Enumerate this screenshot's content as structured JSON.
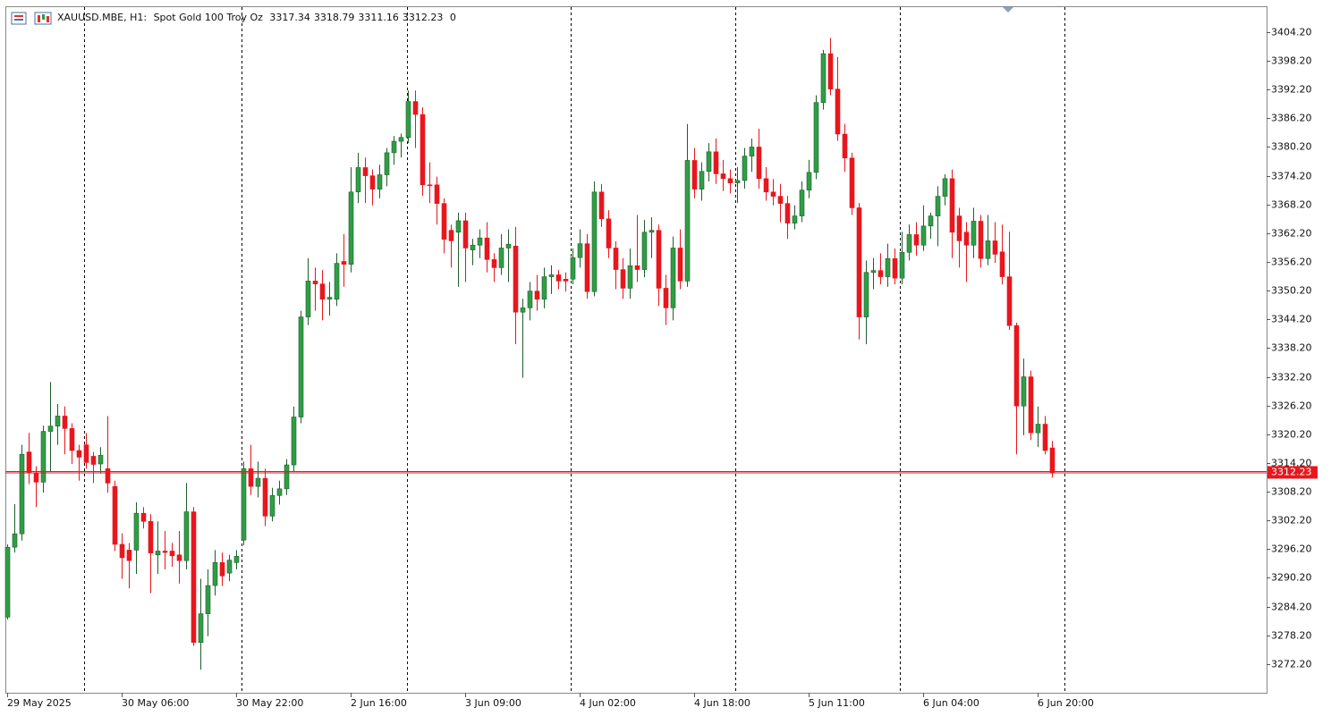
{
  "chart_data": {
    "type": "candlestick",
    "symbol": "XAUUSD.MBE, H1:",
    "description": "Spot Gold 100 Troy Oz",
    "volume": 0,
    "up_color": "#2f9e46",
    "down_color": "#e8161d",
    "categories": [
      "29 May 2025",
      null,
      null,
      null,
      null,
      null,
      null,
      null,
      null,
      null,
      null,
      null,
      null,
      null,
      null,
      null,
      "30 May 06:00",
      null,
      null,
      null,
      null,
      null,
      null,
      null,
      null,
      null,
      null,
      null,
      null,
      null,
      null,
      null,
      "30 May 22:00",
      null,
      null,
      null,
      null,
      null,
      null,
      null,
      null,
      null,
      null,
      null,
      null,
      null,
      null,
      null,
      "2 Jun 16:00",
      null,
      null,
      null,
      null,
      null,
      null,
      null,
      null,
      null,
      null,
      null,
      null,
      null,
      null,
      null,
      "3 Jun 09:00",
      null,
      null,
      null,
      null,
      null,
      null,
      null,
      null,
      null,
      null,
      null,
      null,
      null,
      null,
      null,
      "4 Jun 02:00",
      null,
      null,
      null,
      null,
      null,
      null,
      null,
      null,
      null,
      null,
      null,
      null,
      null,
      null,
      null,
      "4 Jun 18:00",
      null,
      null,
      null,
      null,
      null,
      null,
      null,
      null,
      null,
      null,
      null,
      null,
      null,
      null,
      null,
      "5 Jun 11:00",
      null,
      null,
      null,
      null,
      null,
      null,
      null,
      null,
      null,
      null,
      null,
      null,
      null,
      null,
      null,
      "6 Jun 04:00",
      null,
      null,
      null,
      null,
      null,
      null,
      null,
      null,
      null,
      null,
      null,
      null,
      null,
      null,
      null,
      "6 Jun 20:00",
      null,
      null
    ],
    "open": [
      3282.0,
      3296.6,
      3299.4,
      3316.5,
      3312.0,
      3310.2,
      3320.8,
      3321.9,
      3324.0,
      3321.4,
      3316.8,
      3318.0,
      3315.6,
      3314.0,
      3313.0,
      3309.3,
      3297.2,
      3296.0,
      3296.0,
      3303.7,
      3302.0,
      3295.0,
      3295.8,
      3295.8,
      3295.0,
      3293.8,
      3304.0,
      3276.7,
      3282.7,
      3288.6,
      3293.4,
      3291.2,
      3293.4,
      3298.1,
      3313.0,
      3309.3,
      3311.0,
      3303.1,
      3307.4,
      3308.8,
      3313.8,
      3323.8,
      3344.7,
      3352.2,
      3351.6,
      3348.4,
      3348.4,
      3356.3,
      3355.7,
      3370.8,
      3375.9,
      3374.2,
      3371.4,
      3374.4,
      3379.0,
      3381.4,
      3382.2,
      3389.7,
      3387.0,
      3372.3,
      3372.3,
      3368.4,
      3362.8,
      3362.4,
      3364.8,
      3358.7,
      3359.7,
      3361.2,
      3356.7,
      3355.0,
      3359.1,
      3359.5,
      3345.7,
      3346.6,
      3350.1,
      3348.4,
      3353.1,
      3353.5,
      3352.6,
      3352.6,
      3357.1,
      3360.0,
      3350.0,
      3370.8,
      3365.2,
      3359.1,
      3354.6,
      3350.7,
      3355.4,
      3354.6,
      3362.4,
      3362.8,
      3350.7,
      3346.6,
      3359.1,
      3352.2,
      3377.4,
      3371.4,
      3375.1,
      3379.2,
      3374.6,
      3373.6,
      3372.7,
      3373.2,
      3378.3,
      3380.2,
      3373.6,
      3370.8,
      3369.9,
      3368.4,
      3364.3,
      3365.8,
      3371.2,
      3374.9,
      3389.5,
      3399.7,
      3392.3,
      3382.9,
      3377.9,
      3367.5,
      3344.7,
      3354.0,
      3354.4,
      3353.1,
      3356.9,
      3352.8,
      3358.2,
      3361.9,
      3359.7,
      3363.7,
      3365.8,
      3369.9,
      3373.6,
      3365.8,
      3362.4,
      3359.7,
      3364.7,
      3356.9,
      3360.6,
      3358.3,
      3353.1,
      3342.9,
      3326.1,
      3332.2,
      3320.5,
      3322.3,
      3317.34
    ],
    "high": [
      3297.2,
      3305.6,
      3318.0,
      3320.5,
      3313.5,
      3322.0,
      3331.1,
      3326.5,
      3326.0,
      3322.5,
      3318.0,
      3320.5,
      3316.5,
      3317.5,
      3324.0,
      3310.5,
      3299.5,
      3297.5,
      3306.0,
      3305.0,
      3303.5,
      3302.0,
      3300.0,
      3297.5,
      3300.0,
      3310.0,
      3305.0,
      3290.0,
      3292.0,
      3296.0,
      3295.5,
      3295.0,
      3296.0,
      3314.5,
      3318.0,
      3314.5,
      3313.0,
      3309.0,
      3310.5,
      3315.0,
      3326.0,
      3346.0,
      3357.0,
      3355.0,
      3354.5,
      3352.0,
      3358.0,
      3362.0,
      3376.0,
      3379.0,
      3378.0,
      3375.5,
      3376.5,
      3380.0,
      3382.5,
      3383.0,
      3392.0,
      3392.0,
      3388.5,
      3377.0,
      3374.0,
      3369.5,
      3364.0,
      3366.5,
      3366.5,
      3361.0,
      3363.0,
      3364.5,
      3358.0,
      3362.0,
      3363.0,
      3363.5,
      3348.5,
      3352.0,
      3353.5,
      3355.0,
      3355.5,
      3354.5,
      3354.0,
      3359.0,
      3363.0,
      3362.0,
      3373.0,
      3372.5,
      3367.0,
      3360.5,
      3357.0,
      3359.0,
      3366.0,
      3365.0,
      3365.5,
      3364.0,
      3353.5,
      3361.5,
      3363.0,
      3385.0,
      3380.0,
      3377.0,
      3381.0,
      3382.0,
      3377.5,
      3375.5,
      3376.0,
      3380.0,
      3382.0,
      3384.0,
      3376.0,
      3373.5,
      3372.5,
      3370.0,
      3368.0,
      3373.0,
      3377.5,
      3391.0,
      3400.5,
      3403.0,
      3399.0,
      3385.0,
      3379.0,
      3368.5,
      3356.5,
      3357.0,
      3358.0,
      3360.0,
      3359.0,
      3362.5,
      3364.0,
      3364.5,
      3368.0,
      3366.5,
      3372.0,
      3374.5,
      3375.5,
      3367.5,
      3364.5,
      3367.5,
      3366.0,
      3366.0,
      3364.5,
      3364.0,
      3362.5,
      3343.5,
      3336.0,
      3333.5,
      3326.0,
      3324.0,
      3318.79
    ],
    "low": [
      3281.5,
      3295.5,
      3298.0,
      3309.8,
      3305.0,
      3308.0,
      3312.5,
      3318.0,
      3316.0,
      3314.0,
      3310.5,
      3313.0,
      3310.0,
      3312.0,
      3308.0,
      3295.8,
      3290.0,
      3288.0,
      3291.0,
      3300.5,
      3287.0,
      3291.0,
      3292.0,
      3292.5,
      3289.0,
      3292.0,
      3276.0,
      3271.0,
      3278.0,
      3286.5,
      3288.5,
      3289.5,
      3292.0,
      3297.0,
      3307.5,
      3307.0,
      3301.0,
      3302.0,
      3305.5,
      3307.5,
      3312.5,
      3322.5,
      3343.0,
      3346.0,
      3344.0,
      3345.0,
      3347.0,
      3351.0,
      3354.0,
      3368.5,
      3368.5,
      3368.0,
      3369.5,
      3372.0,
      3376.5,
      3378.0,
      3381.0,
      3380.0,
      3370.0,
      3368.5,
      3364.0,
      3358.0,
      3355.0,
      3351.0,
      3352.0,
      3355.5,
      3357.0,
      3354.0,
      3352.0,
      3353.5,
      3352.0,
      3339.0,
      3332.0,
      3344.0,
      3346.0,
      3346.5,
      3349.5,
      3350.5,
      3350.0,
      3351.5,
      3355.0,
      3348.5,
      3349.0,
      3363.5,
      3357.0,
      3350.5,
      3348.5,
      3348.5,
      3352.0,
      3353.0,
      3357.0,
      3347.0,
      3343.0,
      3344.0,
      3350.5,
      3351.0,
      3369.5,
      3369.0,
      3373.0,
      3372.5,
      3371.0,
      3370.5,
      3368.5,
      3371.5,
      3375.0,
      3371.5,
      3369.0,
      3368.0,
      3364.5,
      3361.0,
      3363.0,
      3364.5,
      3369.5,
      3373.5,
      3388.0,
      3391.0,
      3381.5,
      3375.0,
      3366.0,
      3340.0,
      3339.0,
      3350.5,
      3351.5,
      3351.0,
      3351.5,
      3351.5,
      3356.5,
      3357.5,
      3358.5,
      3361.0,
      3359.5,
      3368.0,
      3357.0,
      3355.0,
      3352.0,
      3357.0,
      3355.0,
      3355.5,
      3356.0,
      3351.5,
      3342.0,
      3316.0,
      3320.0,
      3319.0,
      3317.5,
      3316.0,
      3311.16
    ],
    "close": [
      3296.6,
      3299.4,
      3316.0,
      3312.1,
      3310.2,
      3320.8,
      3321.9,
      3324.0,
      3321.4,
      3316.8,
      3315.4,
      3314.3,
      3313.9,
      3315.8,
      3310.0,
      3297.2,
      3294.4,
      3293.8,
      3303.7,
      3302.0,
      3295.4,
      3295.8,
      3295.5,
      3294.8,
      3293.8,
      3304.0,
      3276.7,
      3282.7,
      3288.6,
      3293.4,
      3290.6,
      3293.9,
      3294.7,
      3313.0,
      3309.3,
      3311.0,
      3303.1,
      3307.4,
      3308.8,
      3313.8,
      3323.8,
      3344.7,
      3352.2,
      3351.6,
      3348.4,
      3348.8,
      3355.9,
      3355.7,
      3370.8,
      3375.9,
      3374.2,
      3371.4,
      3374.4,
      3379.0,
      3381.4,
      3382.2,
      3389.7,
      3387.0,
      3372.3,
      3372.1,
      3368.4,
      3360.9,
      3360.6,
      3364.8,
      3359.1,
      3359.7,
      3361.2,
      3356.7,
      3355.0,
      3359.1,
      3359.9,
      3345.7,
      3346.6,
      3350.1,
      3348.4,
      3353.1,
      3353.5,
      3352.2,
      3352.2,
      3357.1,
      3360.0,
      3350.0,
      3370.8,
      3365.2,
      3359.1,
      3354.6,
      3350.7,
      3355.4,
      3354.6,
      3362.4,
      3362.8,
      3350.7,
      3346.6,
      3359.1,
      3352.2,
      3377.4,
      3371.4,
      3375.1,
      3379.2,
      3374.6,
      3373.6,
      3372.7,
      3373.2,
      3378.3,
      3380.2,
      3373.6,
      3370.8,
      3369.9,
      3368.4,
      3364.3,
      3365.8,
      3371.2,
      3374.9,
      3389.5,
      3399.7,
      3392.3,
      3382.9,
      3377.9,
      3367.5,
      3344.7,
      3354.0,
      3354.4,
      3353.1,
      3356.9,
      3352.8,
      3358.2,
      3361.9,
      3359.7,
      3363.7,
      3365.8,
      3369.9,
      3373.6,
      3362.4,
      3360.6,
      3359.7,
      3364.7,
      3356.9,
      3360.6,
      3357.8,
      3353.1,
      3342.9,
      3326.1,
      3332.2,
      3320.5,
      3322.3,
      3316.8,
      3312.23
    ],
    "last_price_label": "3312.23",
    "ylim": [
      3266.2,
      3409.6
    ],
    "yticks": [
      {
        "value": 3272.2,
        "label": "3272.20"
      },
      {
        "value": 3278.2,
        "label": "3278.20"
      },
      {
        "value": 3284.2,
        "label": "3284.20"
      },
      {
        "value": 3290.2,
        "label": "3290.20"
      },
      {
        "value": 3296.2,
        "label": "3296.20"
      },
      {
        "value": 3302.2,
        "label": "3302.20"
      },
      {
        "value": 3308.2,
        "label": "3308.20"
      },
      {
        "value": 3314.2,
        "label": "3314.20"
      },
      {
        "value": 3320.2,
        "label": "3320.20"
      },
      {
        "value": 3326.2,
        "label": "3326.20"
      },
      {
        "value": 3332.2,
        "label": "3332.20"
      },
      {
        "value": 3338.2,
        "label": "3338.20"
      },
      {
        "value": 3344.2,
        "label": "3344.20"
      },
      {
        "value": 3350.2,
        "label": "3350.20"
      },
      {
        "value": 3356.2,
        "label": "3356.20"
      },
      {
        "value": 3362.2,
        "label": "3362.20"
      },
      {
        "value": 3368.2,
        "label": "3368.20"
      },
      {
        "value": 3374.2,
        "label": "3374.20"
      },
      {
        "value": 3380.2,
        "label": "3380.20"
      },
      {
        "value": 3386.2,
        "label": "3386.20"
      },
      {
        "value": 3392.2,
        "label": "3392.20"
      },
      {
        "value": 3398.2,
        "label": "3398.20"
      },
      {
        "value": 3404.2,
        "label": "3404.20"
      }
    ]
  }
}
